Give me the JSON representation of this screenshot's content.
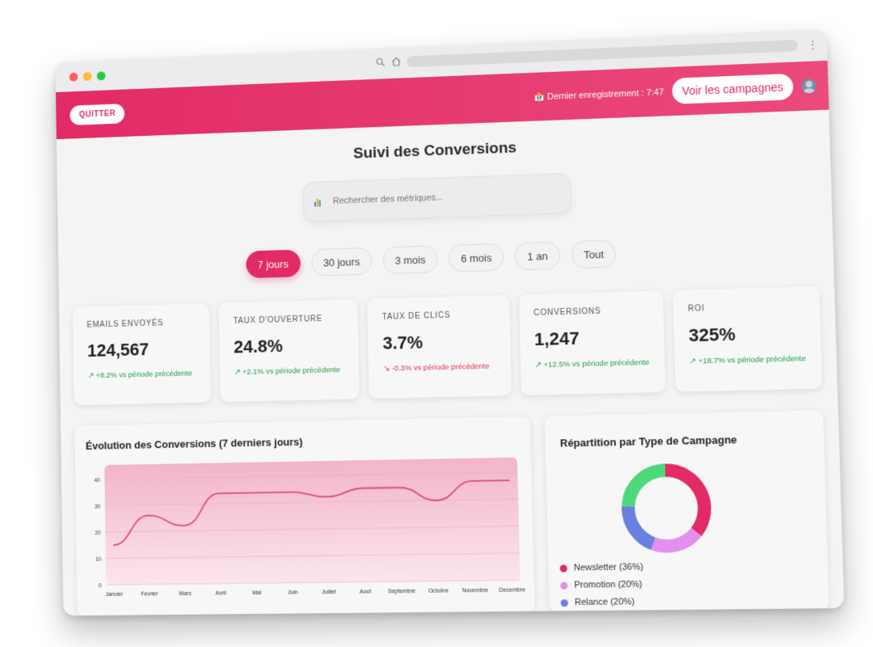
{
  "header": {
    "quit_label": "QUITTER",
    "last_save": "📅 Dernier enregistrement : 7:47",
    "campaigns_label": "Voir les campagnes"
  },
  "page": {
    "title": "Suivi des Conversions"
  },
  "search": {
    "placeholder": "Rechercher des métriques..."
  },
  "periods": [
    {
      "label": "7 jours",
      "active": true
    },
    {
      "label": "30 jours",
      "active": false
    },
    {
      "label": "3 mois",
      "active": false
    },
    {
      "label": "6 mois",
      "active": false
    },
    {
      "label": "1 an",
      "active": false
    },
    {
      "label": "Tout",
      "active": false
    }
  ],
  "kpis": [
    {
      "label": "EMAILS ENVOYÉS",
      "value": "124,567",
      "trend": "↗ +8.2% vs période précédente",
      "direction": "up"
    },
    {
      "label": "TAUX D'OUVERTURE",
      "value": "24.8%",
      "trend": "↗ +2.1% vs période précédente",
      "direction": "up"
    },
    {
      "label": "TAUX DE CLICS",
      "value": "3.7%",
      "trend": "↘ -0.3% vs période précédente",
      "direction": "down"
    },
    {
      "label": "CONVERSIONS",
      "value": "1,247",
      "trend": "↗ +12.5% vs période précédente",
      "direction": "up"
    },
    {
      "label": "ROI",
      "value": "325%",
      "trend": "↗ +18.7% vs période précédente",
      "direction": "up"
    }
  ],
  "colors": {
    "accent": "#e22a64",
    "up": "#1e9e48",
    "down": "#e0334b"
  },
  "line_card": {
    "title": "Évolution des Conversions (7 derniers jours)"
  },
  "pie_card": {
    "title": "Répartition par Type de Campagne"
  },
  "chart_data": [
    {
      "type": "line",
      "title": "Évolution des Conversions (7 derniers jours)",
      "categories": [
        "Janvier",
        "Fevrier",
        "Mars",
        "Avril",
        "Mai",
        "Juin",
        "Juillet",
        "Aout",
        "Septembre",
        "Octobre",
        "Novembre",
        "Decembre"
      ],
      "values": [
        15,
        26,
        22,
        34,
        34,
        34,
        32,
        35,
        35,
        30,
        37,
        37
      ],
      "ylim": [
        0,
        40
      ],
      "yticks": [
        0,
        10,
        20,
        30,
        40
      ],
      "color": "#e04b7a"
    },
    {
      "type": "pie",
      "title": "Répartition par Type de Campagne",
      "slices": [
        {
          "label": "Newsletter (36%)",
          "value": 36,
          "color": "#e22a64"
        },
        {
          "label": "Promotion (20%)",
          "value": 20,
          "color": "#e48fee"
        },
        {
          "label": "Relance (20%)",
          "value": 20,
          "color": "#6a7fe0"
        },
        {
          "label": "",
          "value": 24,
          "color": "#4cd97a"
        }
      ]
    }
  ]
}
